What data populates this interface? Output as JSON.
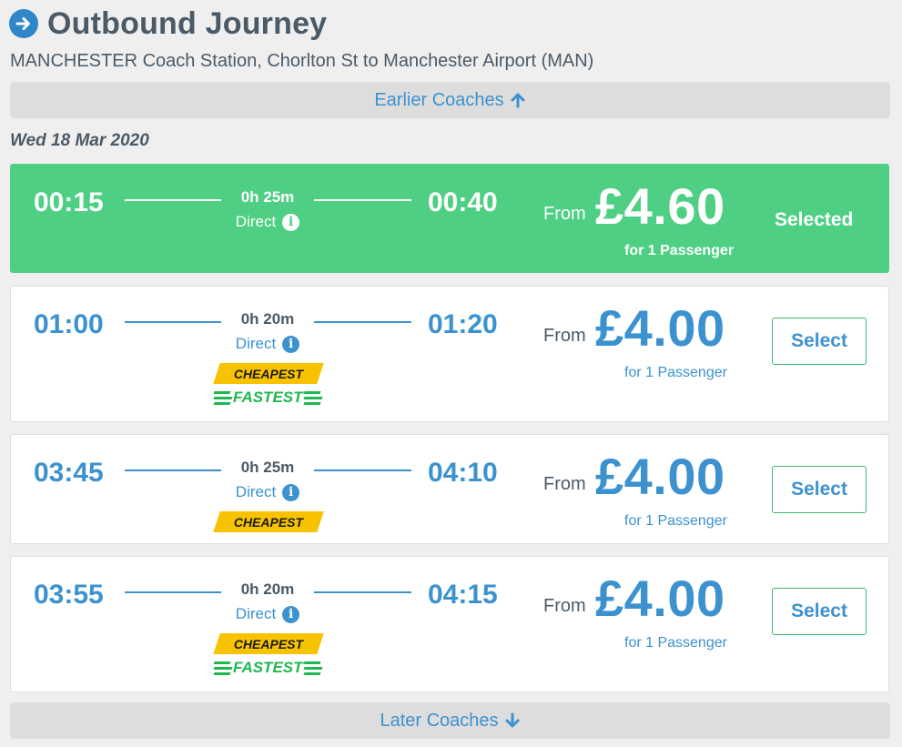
{
  "header": {
    "title": "Outbound Journey",
    "icon": "arrow-right-circle-icon",
    "route": "MANCHESTER Coach Station, Chorlton St to Manchester Airport (MAN)"
  },
  "nav": {
    "earlier_label": "Earlier Coaches",
    "later_label": "Later Coaches"
  },
  "date": "Wed 18 Mar 2020",
  "colors": {
    "accent_blue": "#3c92cf",
    "selected_green": "#4ecf83",
    "cheapest_yellow": "#f7c300",
    "fastest_green": "#1fb84f"
  },
  "journeys": [
    {
      "depart": "00:15",
      "arrive": "00:40",
      "duration": "0h 25m",
      "type": "Direct",
      "from_label": "From",
      "price": "£4.60",
      "passengers": "for 1 Passenger",
      "status_label": "Selected",
      "cheapest_label": "",
      "fastest_label": ""
    },
    {
      "depart": "01:00",
      "arrive": "01:20",
      "duration": "0h 20m",
      "type": "Direct",
      "from_label": "From",
      "price": "£4.00",
      "passengers": "for 1 Passenger",
      "select_label": "Select",
      "cheapest_label": "CHEAPEST",
      "fastest_label": "FASTEST"
    },
    {
      "depart": "03:45",
      "arrive": "04:10",
      "duration": "0h 25m",
      "type": "Direct",
      "from_label": "From",
      "price": "£4.00",
      "passengers": "for 1 Passenger",
      "select_label": "Select",
      "cheapest_label": "CHEAPEST",
      "fastest_label": ""
    },
    {
      "depart": "03:55",
      "arrive": "04:15",
      "duration": "0h 20m",
      "type": "Direct",
      "from_label": "From",
      "price": "£4.00",
      "passengers": "for 1 Passenger",
      "select_label": "Select",
      "cheapest_label": "CHEAPEST",
      "fastest_label": "FASTEST"
    }
  ]
}
